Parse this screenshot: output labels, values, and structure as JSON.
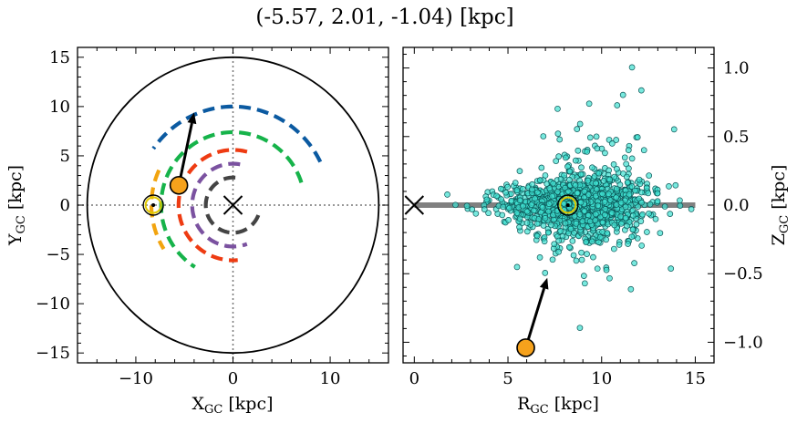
{
  "title": "(-5.57, 2.01, -1.04) [kpc]",
  "colors": {
    "blue": "#0b5aa1",
    "green": "#16b34a",
    "orange_red": "#ee3b12",
    "purple": "#7b52a0",
    "dark_gray": "#444444",
    "gold": "#f2a40f",
    "star": "#f6a21c",
    "teal": "#3fe0d0",
    "disk": "#808080"
  },
  "chart_data": [
    {
      "type": "scatter",
      "panel": "left",
      "xlabel": "X",
      "xlabel_sub": "GC",
      "xlabel_unit": " [kpc]",
      "ylabel": "Y",
      "ylabel_sub": "GC",
      "ylabel_unit": " [kpc]",
      "xlim": [
        -16,
        16
      ],
      "ylim": [
        -16,
        16
      ],
      "xticks": [
        -10,
        0,
        10
      ],
      "yticks": [
        -15,
        -10,
        -5,
        0,
        5,
        10,
        15
      ],
      "outer_circle_radius": 15,
      "galactic_center": [
        0,
        0
      ],
      "sun": [
        -8.2,
        0
      ],
      "star": [
        -5.57,
        2.01
      ],
      "velocity_arrow_end": [
        -4.0,
        9.4
      ],
      "arms": [
        {
          "color": "blue",
          "radius": 10.0,
          "theta_start": 26,
          "theta_end": 145
        },
        {
          "color": "green",
          "radius": 7.4,
          "theta_start": 18,
          "theta_end": 238
        },
        {
          "color": "orange_red",
          "radius": 5.6,
          "theta_start": 75,
          "theta_end": 275
        },
        {
          "color": "purple",
          "radius": 4.2,
          "theta_start": 80,
          "theta_end": 290
        },
        {
          "color": "dark_gray",
          "radius": 2.8,
          "theta_start": 85,
          "theta_end": 340
        },
        {
          "color": "gold",
          "radius": 8.4,
          "theta_start": 155,
          "theta_end": 212
        }
      ]
    },
    {
      "type": "scatter",
      "panel": "right",
      "xlabel": "R",
      "xlabel_sub": "GC",
      "xlabel_unit": " [kpc]",
      "ylabel": "Z",
      "ylabel_sub": "GC",
      "ylabel_unit": " [kpc]",
      "xlim": [
        -0.6,
        16
      ],
      "ylim": [
        -1.15,
        1.15
      ],
      "xticks": [
        0,
        5,
        10,
        15
      ],
      "yticks": [
        -1.0,
        -0.5,
        0.0,
        0.5,
        1.0
      ],
      "ytick_labels": [
        "−1.0",
        "−0.5",
        "0.0",
        "0.5",
        "1.0"
      ],
      "disk_line": {
        "x_start": 0,
        "x_end": 15,
        "z": 0
      },
      "galactic_center": [
        0,
        0
      ],
      "sun": [
        8.2,
        0
      ],
      "star": [
        5.95,
        -1.04
      ],
      "velocity_arrow_end": [
        7.1,
        -0.53
      ],
      "population": {
        "count": 1400,
        "r_center": 8.7,
        "r_spread": 2.4,
        "z_spread_core": 0.07,
        "z_spread_wide": 0.32
      }
    }
  ],
  "xtick_text": {
    "left": [
      "−10",
      "0",
      "10"
    ],
    "right": [
      "0",
      "5",
      "10",
      "15"
    ]
  },
  "ytick_text": {
    "left": [
      "−15",
      "−10",
      "−5",
      "0",
      "5",
      "10",
      "15"
    ]
  }
}
